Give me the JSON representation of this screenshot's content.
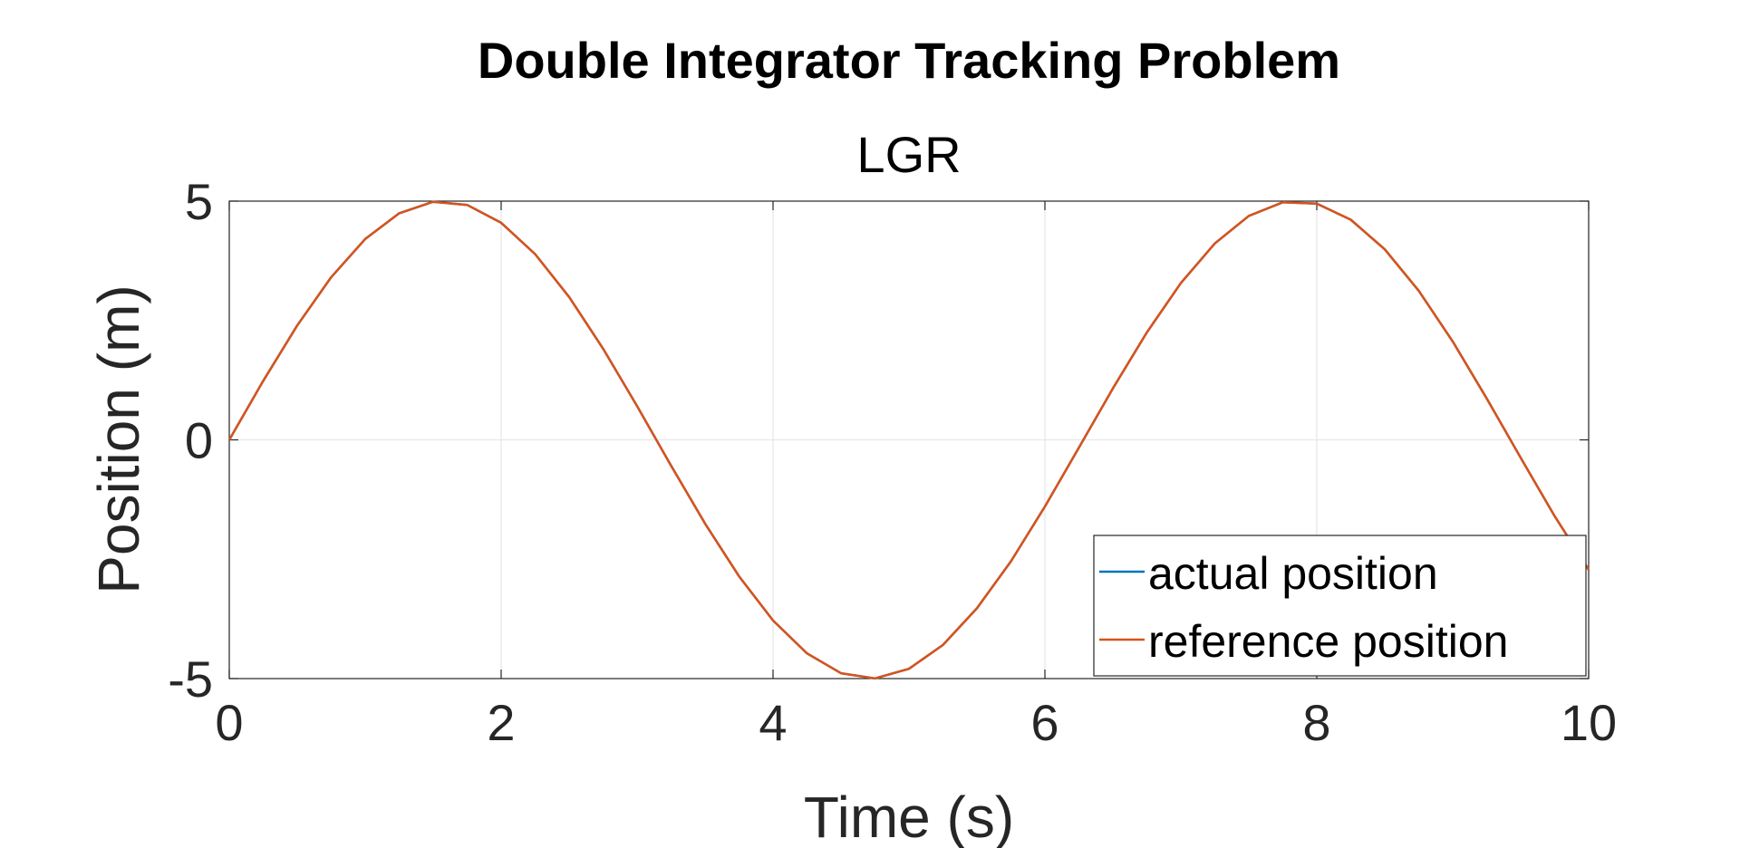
{
  "chart_data": {
    "type": "line",
    "title": "Double Integrator Tracking Problem",
    "subtitle": "LGR",
    "xlabel": "Time (s)",
    "ylabel": "Position (m)",
    "xlim": [
      0,
      10
    ],
    "ylim": [
      -5,
      5
    ],
    "xticks": [
      0,
      2,
      4,
      6,
      8,
      10
    ],
    "yticks": [
      -5,
      0,
      5
    ],
    "xtick_labels": [
      "0",
      "2",
      "4",
      "6",
      "8",
      "10"
    ],
    "ytick_labels": [
      "-5",
      "0",
      "5"
    ],
    "grid": true,
    "legend": {
      "position": "bottom-right"
    },
    "x": [
      0,
      0.25,
      0.5,
      0.75,
      1,
      1.25,
      1.5,
      1.75,
      2,
      2.25,
      2.5,
      2.75,
      3,
      3.25,
      3.5,
      3.75,
      4,
      4.25,
      4.5,
      4.75,
      5,
      5.25,
      5.5,
      5.75,
      6,
      6.25,
      6.5,
      6.75,
      7,
      7.25,
      7.5,
      7.75,
      8,
      8.25,
      8.5,
      8.75,
      9,
      9.25,
      9.5,
      9.75,
      10
    ],
    "series": [
      {
        "name": "actual position",
        "color": "#0072BD",
        "values": [
          0,
          1.237,
          2.397,
          3.408,
          4.207,
          4.745,
          4.987,
          4.92,
          4.546,
          3.89,
          2.992,
          1.908,
          0.706,
          -0.541,
          -1.754,
          -2.858,
          -3.784,
          -4.473,
          -4.888,
          -4.996,
          -4.795,
          -4.296,
          -3.528,
          -2.544,
          -1.397,
          -0.164,
          1.077,
          2.251,
          3.285,
          4.114,
          4.69,
          4.975,
          4.947,
          4.611,
          3.99,
          3.124,
          2.061,
          0.868,
          -0.376,
          -1.597,
          -2.72
        ]
      },
      {
        "name": "reference position",
        "color": "#D95319",
        "values": [
          0,
          1.237,
          2.397,
          3.408,
          4.207,
          4.745,
          4.987,
          4.92,
          4.546,
          3.89,
          2.992,
          1.908,
          0.706,
          -0.541,
          -1.754,
          -2.858,
          -3.784,
          -4.473,
          -4.888,
          -4.996,
          -4.795,
          -4.296,
          -3.528,
          -2.544,
          -1.397,
          -0.164,
          1.077,
          2.251,
          3.285,
          4.114,
          4.69,
          4.975,
          4.947,
          4.611,
          3.99,
          3.124,
          2.061,
          0.868,
          -0.376,
          -1.597,
          -2.72
        ]
      }
    ]
  }
}
